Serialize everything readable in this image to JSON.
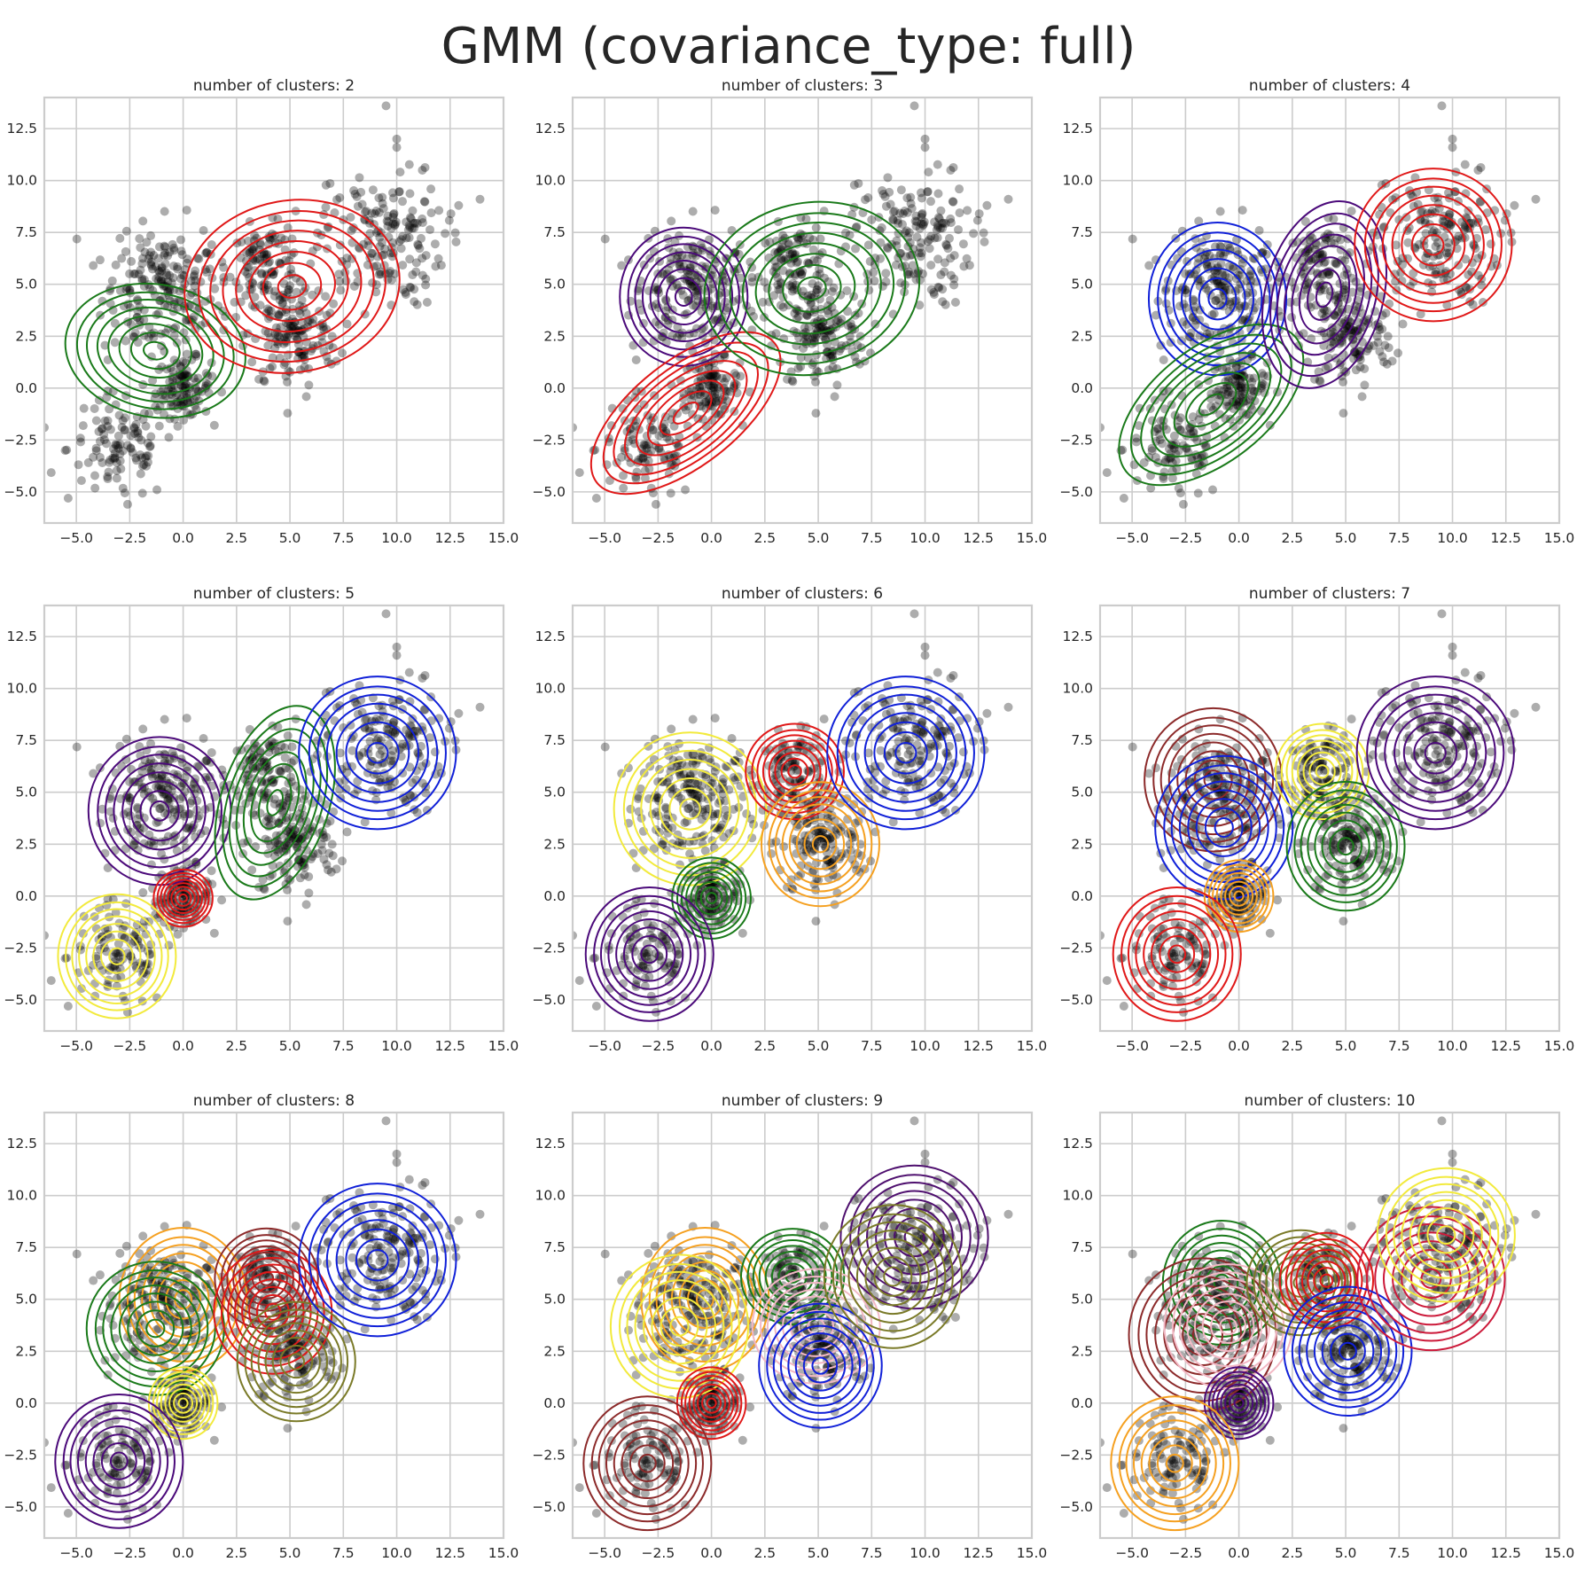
{
  "title": "GMM (covariance_type: full)",
  "colors": {
    "points": "#000000",
    "grid": "#cccccc",
    "frame": "#cccccc",
    "text": "#262626"
  },
  "chart_data": [
    {
      "type": "scatter",
      "title": "number of clusters: 2",
      "xlim": [
        -6.5,
        15
      ],
      "ylim": [
        -6.5,
        14
      ],
      "xticks": [
        "−5.0",
        "−2.5",
        "0.0",
        "2.5",
        "5.0",
        "7.5",
        "10.0",
        "12.5",
        "15.0"
      ],
      "yticks": [
        "−5.0",
        "−2.5",
        "0.0",
        "2.5",
        "5.0",
        "7.5",
        "10.0",
        "12.5"
      ],
      "grid": true,
      "components": [
        {
          "color": "green",
          "mean": [
            -1.3,
            1.8
          ],
          "sd": [
            1.35,
            1.9
          ],
          "angle": 80
        },
        {
          "color": "red",
          "mean": [
            5.1,
            4.9
          ],
          "sd": [
            2.2,
            1.8
          ],
          "angle": 10
        }
      ]
    },
    {
      "type": "scatter",
      "title": "number of clusters: 3",
      "xlim": [
        -6.5,
        15
      ],
      "ylim": [
        -6.5,
        14
      ],
      "xticks": [
        "−5.0",
        "−2.5",
        "0.0",
        "2.5",
        "5.0",
        "7.5",
        "10.0",
        "12.5",
        "15.0"
      ],
      "yticks": [
        "−5.0",
        "−2.5",
        "0.0",
        "2.5",
        "5.0",
        "7.5",
        "10.0",
        "12.5"
      ],
      "grid": true,
      "components": [
        {
          "color": "indigo",
          "mean": [
            -1.3,
            4.4
          ],
          "sd": [
            1.3,
            1.45
          ],
          "angle": 0
        },
        {
          "color": "red",
          "mean": [
            -1.2,
            -1.2
          ],
          "sd": [
            2.3,
            1.1
          ],
          "angle": 38
        },
        {
          "color": "green",
          "mean": [
            4.7,
            4.8
          ],
          "sd": [
            2.2,
            1.8
          ],
          "angle": 10
        }
      ]
    },
    {
      "type": "scatter",
      "title": "number of clusters: 4",
      "xlim": [
        -6.5,
        15
      ],
      "ylim": [
        -6.5,
        14
      ],
      "xticks": [
        "−5.0",
        "−2.5",
        "0.0",
        "2.5",
        "5.0",
        "7.5",
        "10.0",
        "12.5",
        "15.0"
      ],
      "yticks": [
        "−5.0",
        "−2.5",
        "0.0",
        "2.5",
        "5.0",
        "7.5",
        "10.0",
        "12.5"
      ],
      "grid": true,
      "components": [
        {
          "color": "blue",
          "mean": [
            -1.0,
            4.3
          ],
          "sd": [
            1.4,
            1.6
          ],
          "angle": 0
        },
        {
          "color": "green",
          "mean": [
            -1.3,
            -0.8
          ],
          "sd": [
            2.2,
            1.2
          ],
          "angle": 38
        },
        {
          "color": "indigo",
          "mean": [
            4.0,
            4.5
          ],
          "sd": [
            1.2,
            2.0
          ],
          "angle": -15
        },
        {
          "color": "red",
          "mean": [
            9.1,
            6.9
          ],
          "sd": [
            1.6,
            1.6
          ],
          "angle": 0
        }
      ]
    },
    {
      "type": "scatter",
      "title": "number of clusters: 5",
      "xlim": [
        -6.5,
        15
      ],
      "ylim": [
        -6.5,
        14
      ],
      "xticks": [
        "−5.0",
        "−2.5",
        "0.0",
        "2.5",
        "5.0",
        "7.5",
        "10.0",
        "12.5",
        "15.0"
      ],
      "yticks": [
        "−5.0",
        "−2.5",
        "0.0",
        "2.5",
        "5.0",
        "7.5",
        "10.0",
        "12.5"
      ],
      "grid": true,
      "components": [
        {
          "color": "indigo",
          "mean": [
            -1.1,
            4.1
          ],
          "sd": [
            1.45,
            1.55
          ],
          "angle": 0
        },
        {
          "color": "red",
          "mean": [
            0.0,
            -0.1
          ],
          "sd": [
            0.6,
            0.6
          ],
          "angle": 0
        },
        {
          "color": "yellow",
          "mean": [
            -3.1,
            -2.9
          ],
          "sd": [
            1.2,
            1.3
          ],
          "angle": 0
        },
        {
          "color": "green",
          "mean": [
            4.3,
            4.5
          ],
          "sd": [
            1.1,
            2.1
          ],
          "angle": -18
        },
        {
          "color": "blue",
          "mean": [
            9.1,
            6.9
          ],
          "sd": [
            1.6,
            1.6
          ],
          "angle": 0
        }
      ]
    },
    {
      "type": "scatter",
      "title": "number of clusters: 6",
      "xlim": [
        -6.5,
        15
      ],
      "ylim": [
        -6.5,
        14
      ],
      "xticks": [
        "−5.0",
        "−2.5",
        "0.0",
        "2.5",
        "5.0",
        "7.5",
        "10.0",
        "12.5",
        "15.0"
      ],
      "yticks": [
        "−5.0",
        "−2.5",
        "0.0",
        "2.5",
        "5.0",
        "7.5",
        "10.0",
        "12.5"
      ],
      "grid": true,
      "components": [
        {
          "color": "yellow",
          "mean": [
            -1.0,
            4.2
          ],
          "sd": [
            1.55,
            1.6
          ],
          "angle": 0
        },
        {
          "color": "green",
          "mean": [
            0.0,
            -0.1
          ],
          "sd": [
            0.8,
            0.85
          ],
          "angle": 0
        },
        {
          "color": "indigo",
          "mean": [
            -2.9,
            -2.8
          ],
          "sd": [
            1.3,
            1.4
          ],
          "angle": 0
        },
        {
          "color": "red",
          "mean": [
            3.9,
            6.0
          ],
          "sd": [
            1.0,
            1.0
          ],
          "angle": 0
        },
        {
          "color": "orange",
          "mean": [
            5.1,
            2.5
          ],
          "sd": [
            1.2,
            1.3
          ],
          "angle": 0
        },
        {
          "color": "blue",
          "mean": [
            9.1,
            6.9
          ],
          "sd": [
            1.6,
            1.6
          ],
          "angle": 0
        }
      ]
    },
    {
      "type": "scatter",
      "title": "number of clusters: 7",
      "xlim": [
        -6.5,
        15
      ],
      "ylim": [
        -6.5,
        14
      ],
      "xticks": [
        "−5.0",
        "−2.5",
        "0.0",
        "2.5",
        "5.0",
        "7.5",
        "10.0",
        "12.5",
        "15.0"
      ],
      "yticks": [
        "−5.0",
        "−2.5",
        "0.0",
        "2.5",
        "5.0",
        "7.5",
        "10.0",
        "12.5"
      ],
      "grid": true,
      "components": [
        {
          "color": "brown",
          "mean": [
            -1.2,
            5.6
          ],
          "sd": [
            1.4,
            1.5
          ],
          "angle": 0
        },
        {
          "color": "blue",
          "mean": [
            -0.7,
            3.3
          ],
          "sd": [
            1.4,
            1.5
          ],
          "angle": 0
        },
        {
          "color": "orange",
          "mean": [
            0.0,
            0.0
          ],
          "sd": [
            0.7,
            0.75
          ],
          "angle": 0
        },
        {
          "color": "red",
          "mean": [
            -2.9,
            -2.8
          ],
          "sd": [
            1.3,
            1.4
          ],
          "angle": 0
        },
        {
          "color": "yellow",
          "mean": [
            3.9,
            6.0
          ],
          "sd": [
            0.95,
            1.0
          ],
          "angle": 0
        },
        {
          "color": "green",
          "mean": [
            5.0,
            2.4
          ],
          "sd": [
            1.2,
            1.35
          ],
          "angle": 0
        },
        {
          "color": "indigo",
          "mean": [
            9.2,
            6.9
          ],
          "sd": [
            1.6,
            1.6
          ],
          "angle": 0
        }
      ]
    },
    {
      "type": "scatter",
      "title": "number of clusters: 8",
      "xlim": [
        -6.5,
        15
      ],
      "ylim": [
        -6.5,
        14
      ],
      "xticks": [
        "−5.0",
        "−2.5",
        "0.0",
        "2.5",
        "5.0",
        "7.5",
        "10.0",
        "12.5",
        "15.0"
      ],
      "yticks": [
        "−5.0",
        "−2.5",
        "0.0",
        "2.5",
        "5.0",
        "7.5",
        "10.0",
        "12.5"
      ],
      "grid": true,
      "components": [
        {
          "color": "orange",
          "mean": [
            0.0,
            5.0
          ],
          "sd": [
            1.3,
            1.5
          ],
          "angle": 0
        },
        {
          "color": "green",
          "mean": [
            -1.3,
            3.6
          ],
          "sd": [
            1.4,
            1.4
          ],
          "angle": 0
        },
        {
          "color": "yellow",
          "mean": [
            0.0,
            0.0
          ],
          "sd": [
            0.7,
            0.75
          ],
          "angle": 0
        },
        {
          "color": "indigo",
          "mean": [
            -3.0,
            -2.8
          ],
          "sd": [
            1.3,
            1.4
          ],
          "angle": 0
        },
        {
          "color": "brown",
          "mean": [
            3.9,
            6.0
          ],
          "sd": [
            1.05,
            1.05
          ],
          "angle": 0
        },
        {
          "color": "red",
          "mean": [
            4.2,
            4.4
          ],
          "sd": [
            1.2,
            1.3
          ],
          "angle": 0
        },
        {
          "color": "olive",
          "mean": [
            5.3,
            2.0
          ],
          "sd": [
            1.2,
            1.25
          ],
          "angle": 0
        },
        {
          "color": "blue",
          "mean": [
            9.1,
            6.9
          ],
          "sd": [
            1.6,
            1.6
          ],
          "angle": 0
        }
      ]
    },
    {
      "type": "scatter",
      "title": "number of clusters: 9",
      "xlim": [
        -6.5,
        15
      ],
      "ylim": [
        -6.5,
        14
      ],
      "xticks": [
        "−5.0",
        "−2.5",
        "0.0",
        "2.5",
        "5.0",
        "7.5",
        "10.0",
        "12.5",
        "15.0"
      ],
      "yticks": [
        "−5.0",
        "−2.5",
        "0.0",
        "2.5",
        "5.0",
        "7.5",
        "10.0",
        "12.5"
      ],
      "grid": true,
      "components": [
        {
          "color": "orange",
          "mean": [
            -0.3,
            5.0
          ],
          "sd": [
            1.3,
            1.5
          ],
          "angle": 0
        },
        {
          "color": "yellow",
          "mean": [
            -1.5,
            3.7
          ],
          "sd": [
            1.4,
            1.5
          ],
          "angle": 0
        },
        {
          "color": "red",
          "mean": [
            0.0,
            0.0
          ],
          "sd": [
            0.7,
            0.75
          ],
          "angle": 0
        },
        {
          "color": "brown",
          "mean": [
            -3.0,
            -2.9
          ],
          "sd": [
            1.3,
            1.4
          ],
          "angle": 0
        },
        {
          "color": "green",
          "mean": [
            3.8,
            6.1
          ],
          "sd": [
            1.05,
            1.0
          ],
          "angle": 0
        },
        {
          "color": "pink",
          "mean": [
            4.9,
            3.7
          ],
          "sd": [
            1.3,
            1.2
          ],
          "angle": 0
        },
        {
          "color": "blue",
          "mean": [
            5.1,
            1.8
          ],
          "sd": [
            1.25,
            1.3
          ],
          "angle": 0
        },
        {
          "color": "purple",
          "mean": [
            9.5,
            8.0
          ],
          "sd": [
            1.5,
            1.5
          ],
          "angle": 0
        },
        {
          "color": "olive",
          "mean": [
            8.5,
            6.1
          ],
          "sd": [
            1.4,
            1.5
          ],
          "angle": 0
        }
      ]
    },
    {
      "type": "scatter",
      "title": "number of clusters: 10",
      "xlim": [
        -6.5,
        15
      ],
      "ylim": [
        -6.5,
        14
      ],
      "xticks": [
        "−5.0",
        "−2.5",
        "0.0",
        "2.5",
        "5.0",
        "7.5",
        "10.0",
        "12.5",
        "15.0"
      ],
      "yticks": [
        "−5.0",
        "−2.5",
        "0.0",
        "2.5",
        "5.0",
        "7.5",
        "10.0",
        "12.5"
      ],
      "grid": true,
      "components": [
        {
          "color": "green",
          "mean": [
            -0.8,
            5.8
          ],
          "sd": [
            1.2,
            1.3
          ],
          "angle": 0
        },
        {
          "color": "brown",
          "mean": [
            -1.7,
            3.3
          ],
          "sd": [
            1.5,
            1.6
          ],
          "angle": 0
        },
        {
          "color": "pink",
          "mean": [
            -0.5,
            3.7
          ],
          "sd": [
            1.3,
            1.3
          ],
          "angle": 0
        },
        {
          "color": "indigo",
          "mean": [
            0.0,
            0.0
          ],
          "sd": [
            0.7,
            0.75
          ],
          "angle": 0
        },
        {
          "color": "orange",
          "mean": [
            -3.0,
            -2.9
          ],
          "sd": [
            1.3,
            1.4
          ],
          "angle": 0
        },
        {
          "color": "olive",
          "mean": [
            2.9,
            5.8
          ],
          "sd": [
            1.1,
            1.1
          ],
          "angle": 0
        },
        {
          "color": "red",
          "mean": [
            4.1,
            5.9
          ],
          "sd": [
            0.95,
            1.0
          ],
          "angle": 0
        },
        {
          "color": "blue",
          "mean": [
            5.1,
            2.5
          ],
          "sd": [
            1.3,
            1.35
          ],
          "angle": 0
        },
        {
          "color": "crimson",
          "mean": [
            9.0,
            6.0
          ],
          "sd": [
            1.5,
            1.5
          ],
          "angle": 0
        },
        {
          "color": "yellow",
          "mean": [
            9.7,
            8.1
          ],
          "sd": [
            1.4,
            1.4
          ],
          "angle": 0
        }
      ]
    }
  ]
}
